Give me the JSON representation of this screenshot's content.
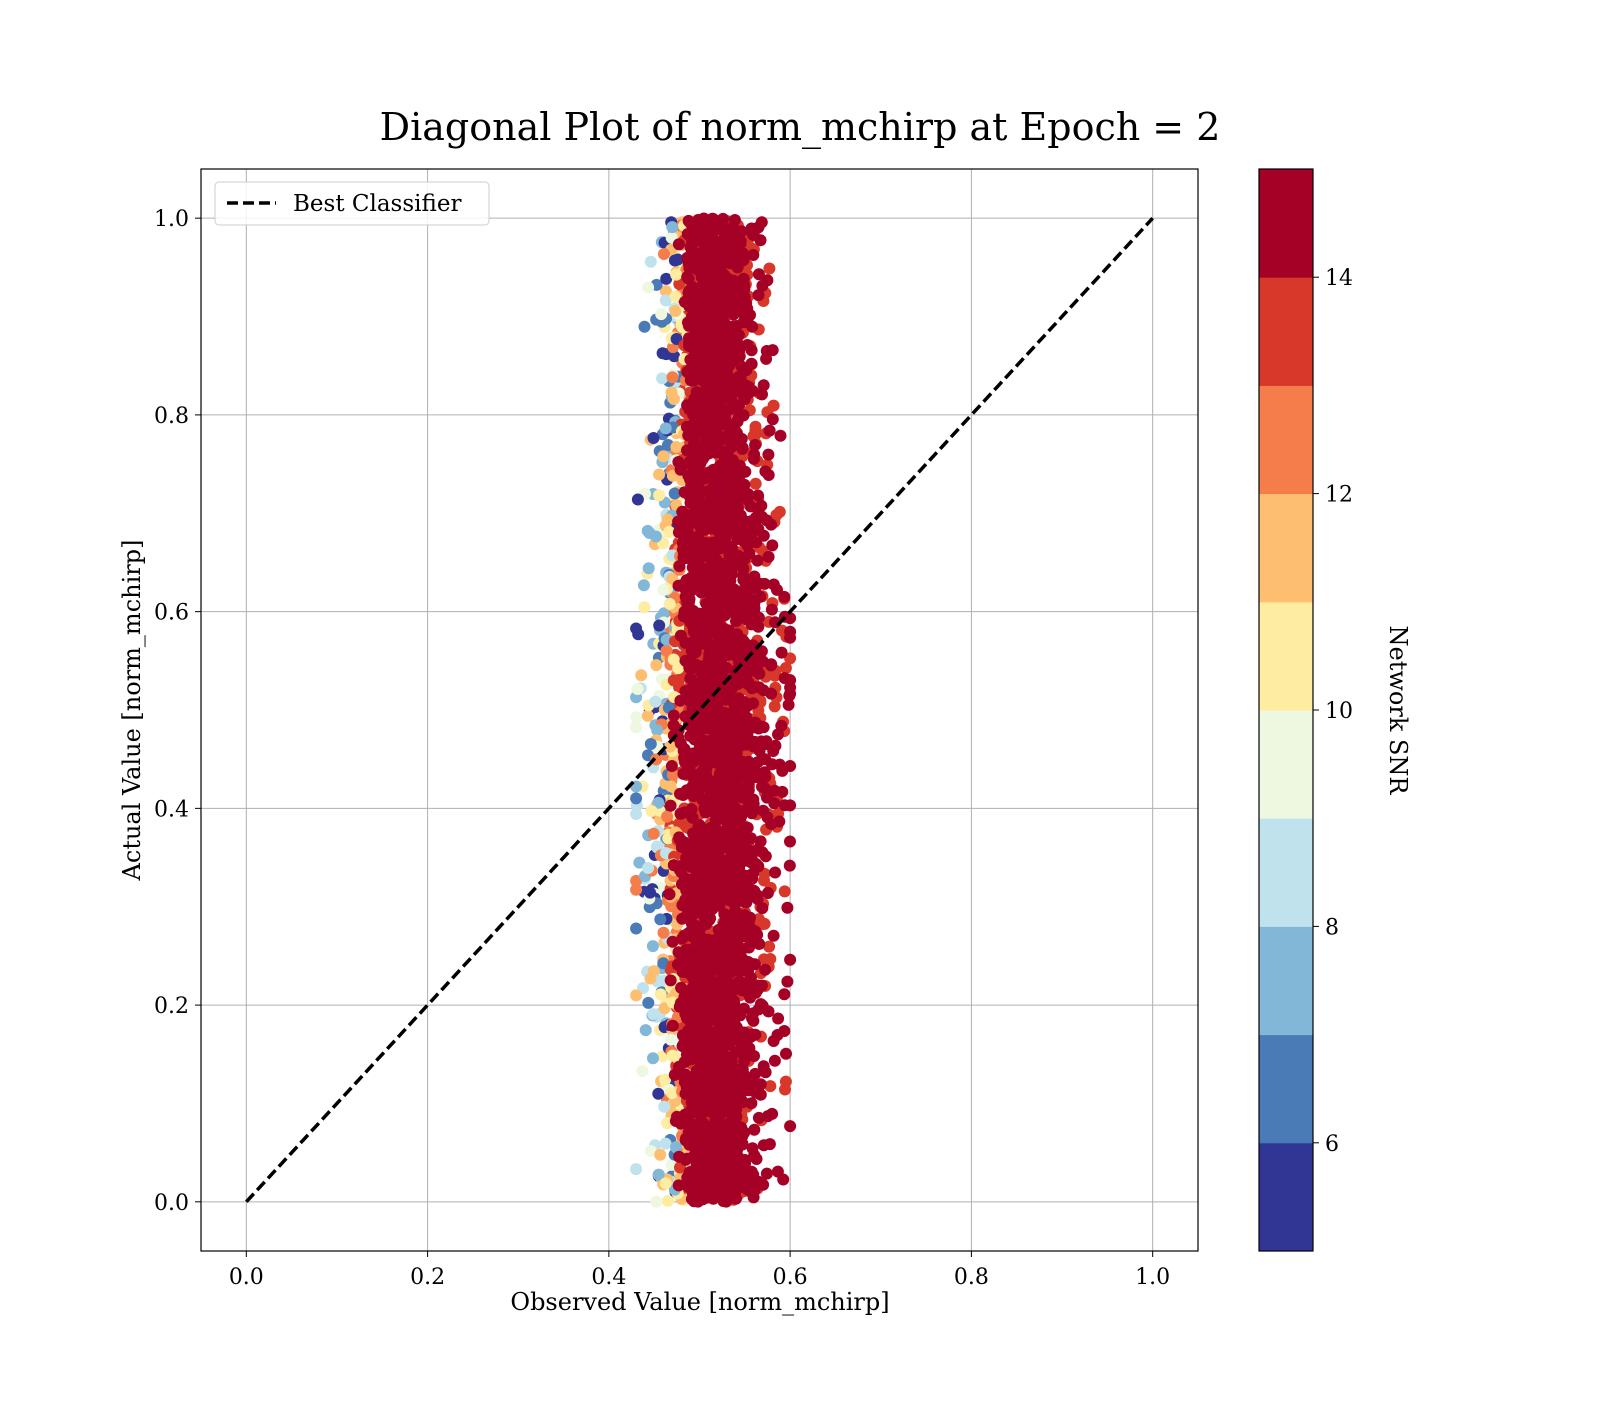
{
  "chart_data": {
    "type": "scatter",
    "title": "Diagonal Plot of norm_mchirp at Epoch = 2",
    "xlabel": "Observed Value [norm_mchirp]",
    "ylabel": "Actual Value [norm_mchirp]",
    "xlim": [
      -0.05,
      1.05
    ],
    "ylim": [
      -0.05,
      1.05
    ],
    "xticks": [
      "0.0",
      "0.2",
      "0.4",
      "0.6",
      "0.8",
      "1.0"
    ],
    "yticks": [
      "0.0",
      "0.2",
      "0.4",
      "0.6",
      "0.8",
      "1.0"
    ],
    "grid": true,
    "legend": {
      "position": "top-left",
      "entries": [
        "Best Classifier"
      ]
    },
    "reference_line": {
      "name": "Best Classifier",
      "x": [
        0.0,
        1.0
      ],
      "y": [
        0.0,
        1.0
      ],
      "style": "dashed",
      "color": "#000000"
    },
    "scatter_cluster": {
      "x_range_at_top": [
        0.43,
        0.58
      ],
      "x_range_at_bottom": [
        0.47,
        0.57
      ],
      "x_center_at_top": 0.51,
      "x_center_at_bottom": 0.51,
      "x_spread_max": [
        0.43,
        0.6
      ],
      "y_range": [
        0.0,
        1.0
      ],
      "dominant_snr_band": "14-15",
      "lower_snr_on_left_edge": true
    },
    "colorbar": {
      "label": "Network SNR",
      "range": [
        5,
        15
      ],
      "ticks": [
        "6",
        "8",
        "10",
        "12",
        "14"
      ],
      "tick_values": [
        6,
        8,
        10,
        12,
        14
      ],
      "bands": [
        {
          "from": 5,
          "to": 6,
          "color": "#313695"
        },
        {
          "from": 6,
          "to": 7,
          "color": "#4a7bb7"
        },
        {
          "from": 7,
          "to": 8,
          "color": "#82b7d8"
        },
        {
          "from": 8,
          "to": 9,
          "color": "#bfe2ec"
        },
        {
          "from": 9,
          "to": 10,
          "color": "#eef7df"
        },
        {
          "from": 10,
          "to": 11,
          "color": "#feeca0"
        },
        {
          "from": 11,
          "to": 12,
          "color": "#fdbe70"
        },
        {
          "from": 12,
          "to": 13,
          "color": "#f47d4b"
        },
        {
          "from": 13,
          "to": 14,
          "color": "#d7382a"
        },
        {
          "from": 14,
          "to": 15,
          "color": "#a50026"
        }
      ]
    }
  }
}
